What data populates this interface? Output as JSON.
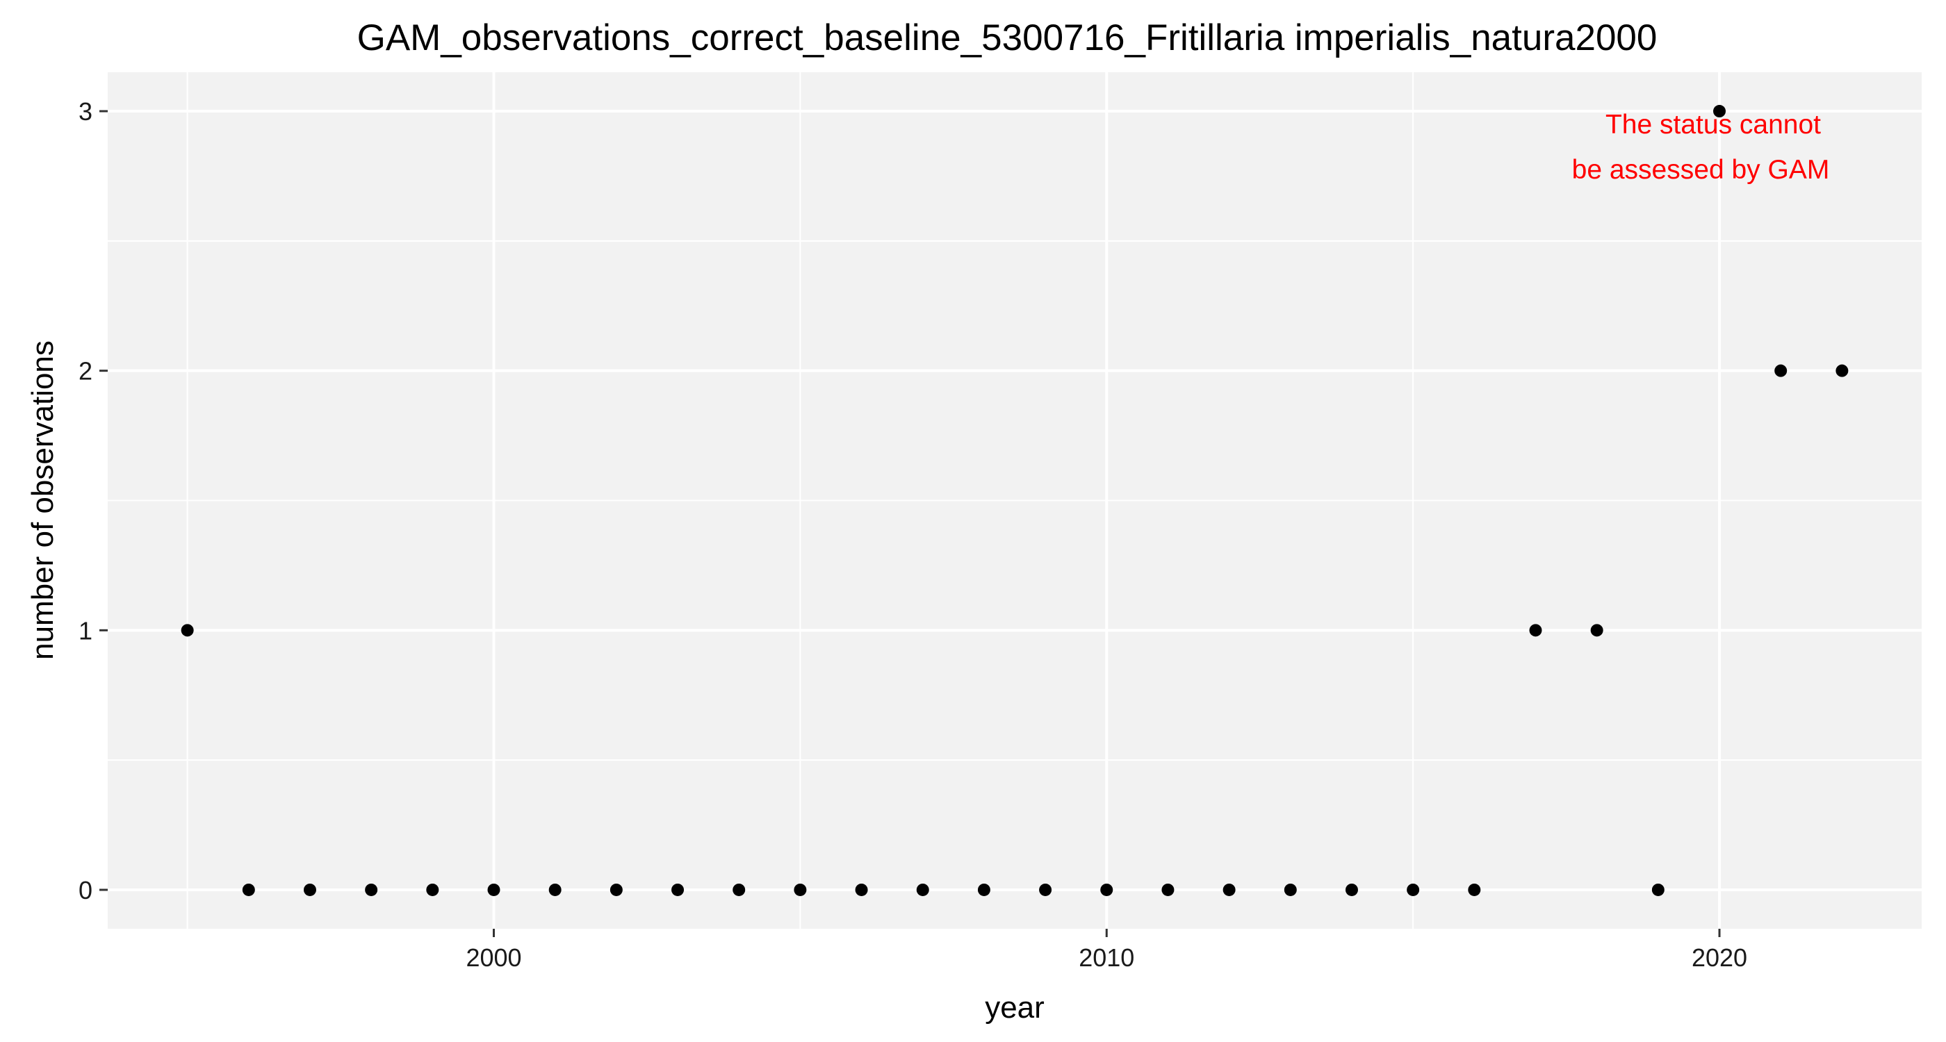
{
  "chart_data": {
    "type": "scatter",
    "title": "GAM_observations_correct_baseline_5300716_Fritillaria imperialis_natura2000",
    "xlabel": "year",
    "ylabel": "number of observations",
    "xlim": [
      1993.7,
      2023.3
    ],
    "ylim": [
      -0.15,
      3.15
    ],
    "x_ticks": [
      2000,
      2010,
      2020
    ],
    "y_ticks": [
      0,
      1,
      2,
      3
    ],
    "grid": true,
    "point_color": "#000000",
    "panel_color": "#f2f2f2",
    "grid_color": "#ffffff",
    "points": [
      {
        "x": 1995,
        "y": 1
      },
      {
        "x": 1996,
        "y": 0
      },
      {
        "x": 1997,
        "y": 0
      },
      {
        "x": 1998,
        "y": 0
      },
      {
        "x": 1999,
        "y": 0
      },
      {
        "x": 2000,
        "y": 0
      },
      {
        "x": 2001,
        "y": 0
      },
      {
        "x": 2002,
        "y": 0
      },
      {
        "x": 2003,
        "y": 0
      },
      {
        "x": 2004,
        "y": 0
      },
      {
        "x": 2005,
        "y": 0
      },
      {
        "x": 2006,
        "y": 0
      },
      {
        "x": 2007,
        "y": 0
      },
      {
        "x": 2008,
        "y": 0
      },
      {
        "x": 2009,
        "y": 0
      },
      {
        "x": 2010,
        "y": 0
      },
      {
        "x": 2011,
        "y": 0
      },
      {
        "x": 2012,
        "y": 0
      },
      {
        "x": 2013,
        "y": 0
      },
      {
        "x": 2014,
        "y": 0
      },
      {
        "x": 2015,
        "y": 0
      },
      {
        "x": 2016,
        "y": 0
      },
      {
        "x": 2017,
        "y": 1
      },
      {
        "x": 2018,
        "y": 1
      },
      {
        "x": 2019,
        "y": 0
      },
      {
        "x": 2020,
        "y": 3
      },
      {
        "x": 2021,
        "y": 2
      },
      {
        "x": 2022,
        "y": 2
      }
    ],
    "annotation": {
      "lines": [
        "The status cannot",
        "be assessed by GAM"
      ],
      "color": "#ff0000"
    }
  }
}
